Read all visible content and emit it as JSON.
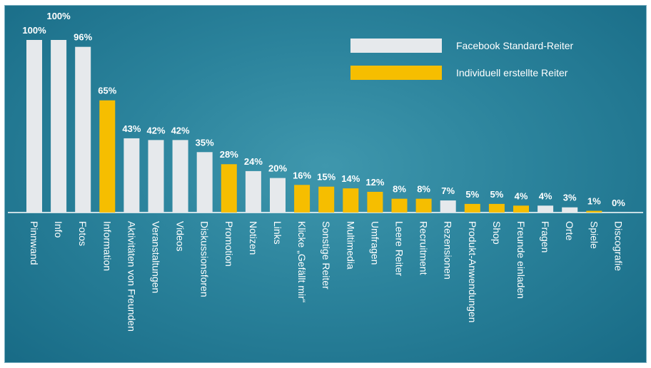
{
  "chart_data": {
    "type": "bar",
    "title": "",
    "xlabel": "",
    "ylabel": "",
    "ylim": [
      0,
      100
    ],
    "grid": false,
    "legend_position": "top-right",
    "categories": [
      "Pinnwand",
      "Info",
      "Fotos",
      "Information",
      "Aktivitäten von Freunden",
      "Veranstaltungen",
      "Videos",
      "Diskussionsforen",
      "Promotion",
      "Notizen",
      "Links",
      "Klicke „Gefällt mir“",
      "Sonstige Reiter",
      "Multimedia",
      "Umfragen",
      "Leere Reiter",
      "Recruitment",
      "Rezensionen",
      "Produkt-Anwendungen",
      "Shop",
      "Freunde einladen",
      "Fragen",
      "Orte",
      "Spiele",
      "Discografie"
    ],
    "values": [
      100,
      100,
      96,
      65,
      43,
      42,
      42,
      35,
      28,
      24,
      20,
      16,
      15,
      14,
      12,
      8,
      8,
      7,
      5,
      5,
      4,
      4,
      3,
      1,
      0
    ],
    "value_labels": [
      "100%",
      "100%",
      "96%",
      "65%",
      "43%",
      "42%",
      "42%",
      "35%",
      "28%",
      "24%",
      "20%",
      "16%",
      "15%",
      "14%",
      "12%",
      "8%",
      "8%",
      "7%",
      "5%",
      "5%",
      "4%",
      "4%",
      "3%",
      "1%",
      "0%"
    ],
    "series_index": [
      0,
      0,
      0,
      1,
      0,
      0,
      0,
      0,
      1,
      0,
      0,
      1,
      1,
      1,
      1,
      1,
      1,
      0,
      1,
      1,
      1,
      0,
      0,
      1,
      0
    ],
    "series": [
      {
        "name": "Facebook Standard-Reiter",
        "color": "#e6e9ec"
      },
      {
        "name": "Individuell erstellte Reiter",
        "color": "#f6be00"
      }
    ]
  }
}
